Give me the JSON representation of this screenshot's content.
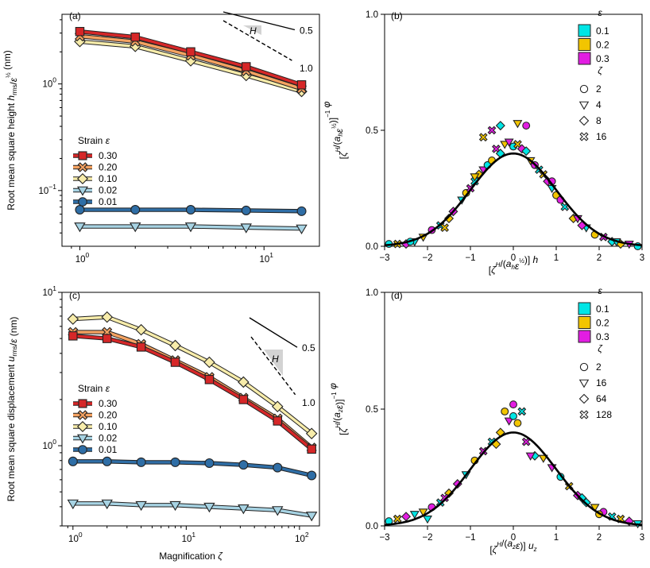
{
  "chart_data": [
    {
      "panel": "(a)",
      "type": "line",
      "yscale": "log",
      "xscale": "log",
      "xlabel": "",
      "ylabel": "Root mean square height h_rms/ε^½ (nm)",
      "xlim": [
        0.8,
        20
      ],
      "ylim": [
        0.03,
        4.5
      ],
      "xticks": [
        1,
        10
      ],
      "xtick_labels": [
        "10^0",
        "10^1"
      ],
      "yticks": [
        0.1,
        1
      ],
      "ytick_labels": [
        "10^-1",
        "10^0"
      ],
      "legend_title": "Strain ε",
      "legend_placement": "center-left",
      "x": [
        1,
        2,
        4,
        8,
        16
      ],
      "series": [
        {
          "name": "0.30",
          "marker": "square",
          "color": "#d62728",
          "values": [
            3.1,
            2.75,
            2.0,
            1.45,
            0.98
          ]
        },
        {
          "name": "0.20",
          "marker": "x",
          "color": "#f4a261",
          "values": [
            2.8,
            2.5,
            1.85,
            1.32,
            0.9
          ]
        },
        {
          "name": "0.10",
          "marker": "diamond",
          "color": "#f7ecaa",
          "values": [
            2.5,
            2.25,
            1.65,
            1.2,
            0.85
          ]
        },
        {
          "name": "0.02",
          "marker": "triangle-down",
          "color": "#a7d3e3",
          "values": [
            0.046,
            0.046,
            0.046,
            0.045,
            0.044
          ]
        },
        {
          "name": "0.01",
          "marker": "circle",
          "color": "#2f6ea6",
          "values": [
            0.066,
            0.066,
            0.066,
            0.065,
            0.064
          ]
        }
      ],
      "slope_annotation": {
        "label": "H",
        "slopes": [
          "0.5",
          "1.0"
        ]
      }
    },
    {
      "panel": "(b)",
      "type": "scatter",
      "xlabel": "[ζ^H/(a_h ε^½)] h",
      "ylabel": "[ζ^H/(a_h ε^½)]^-1 φ",
      "xlim": [
        -3,
        3
      ],
      "ylim": [
        0,
        1.0
      ],
      "xticks": [
        -3,
        -2,
        -1,
        0,
        1,
        2,
        3
      ],
      "yticks": [
        0,
        0.5,
        1.0
      ],
      "ytick_labels": [
        "0.0",
        "0.5",
        "1.0"
      ],
      "legend_placement": "top-right",
      "legend_color_title": "ε",
      "legend_colors": [
        {
          "label": "0.1",
          "color": "#00e5e5"
        },
        {
          "label": "0.2",
          "color": "#f2c500"
        },
        {
          "label": "0.3",
          "color": "#e21de2"
        }
      ],
      "legend_marker_title": "ζ",
      "legend_markers": [
        {
          "label": "2",
          "marker": "circle"
        },
        {
          "label": "4",
          "marker": "triangle-down"
        },
        {
          "label": "8",
          "marker": "diamond"
        },
        {
          "label": "16",
          "marker": "x"
        }
      ],
      "curve": {
        "type": "gaussian",
        "peak": 0.4,
        "sigma": 1.0
      },
      "data_points": [
        [
          -2.9,
          0.01
        ],
        [
          -2.7,
          0.01
        ],
        [
          -2.5,
          0.01
        ],
        [
          -2.3,
          0.02
        ],
        [
          -2.1,
          0.04
        ],
        [
          -1.9,
          0.07
        ],
        [
          -1.7,
          0.09
        ],
        [
          -1.5,
          0.12
        ],
        [
          -1.4,
          0.15
        ],
        [
          -1.2,
          0.2
        ],
        [
          -1.1,
          0.23
        ],
        [
          -1.0,
          0.25
        ],
        [
          -0.9,
          0.28
        ],
        [
          -0.8,
          0.31
        ],
        [
          -0.7,
          0.33
        ],
        [
          -0.6,
          0.35
        ],
        [
          -0.5,
          0.37
        ],
        [
          -0.4,
          0.42
        ],
        [
          -0.3,
          0.4
        ],
        [
          -0.2,
          0.44
        ],
        [
          -0.1,
          0.45
        ],
        [
          0.0,
          0.43
        ],
        [
          0.1,
          0.44
        ],
        [
          0.2,
          0.42
        ],
        [
          0.3,
          0.41
        ],
        [
          0.4,
          0.37
        ],
        [
          0.5,
          0.35
        ],
        [
          0.6,
          0.33
        ],
        [
          0.7,
          0.31
        ],
        [
          0.8,
          0.28
        ],
        [
          0.9,
          0.25
        ],
        [
          1.0,
          0.22
        ],
        [
          1.1,
          0.2
        ],
        [
          1.2,
          0.17
        ],
        [
          1.4,
          0.12
        ],
        [
          1.5,
          0.12
        ],
        [
          1.7,
          0.08
        ],
        [
          1.9,
          0.05
        ],
        [
          2.1,
          0.04
        ],
        [
          2.3,
          0.02
        ],
        [
          2.5,
          0.01
        ],
        [
          2.7,
          0.01
        ],
        [
          2.9,
          0.0
        ],
        [
          -0.7,
          0.47
        ],
        [
          -0.5,
          0.5
        ],
        [
          -0.3,
          0.52
        ],
        [
          0.1,
          0.53
        ],
        [
          0.3,
          0.52
        ],
        [
          -2.4,
          0.02
        ],
        [
          -1.6,
          0.08
        ],
        [
          1.6,
          0.09
        ],
        [
          2.4,
          0.02
        ],
        [
          -0.9,
          0.3
        ],
        [
          0.9,
          0.28
        ]
      ]
    },
    {
      "panel": "(c)",
      "type": "line",
      "yscale": "log",
      "xscale": "log",
      "xlabel": "Magnification ζ",
      "ylabel": "Root mean square displacement u_rms/ε (nm)",
      "xlim": [
        0.8,
        150
      ],
      "ylim": [
        0.3,
        10
      ],
      "xticks": [
        1,
        10,
        100
      ],
      "xtick_labels": [
        "10^0",
        "10^1",
        "10^2"
      ],
      "yticks": [
        1,
        10
      ],
      "ytick_labels": [
        "10^0",
        "10^1"
      ],
      "legend_title": "Strain ε",
      "legend_placement": "center-left",
      "x": [
        1,
        2,
        4,
        8,
        16,
        32,
        64,
        128
      ],
      "series": [
        {
          "name": "0.30",
          "marker": "square",
          "color": "#d62728",
          "values": [
            5.2,
            5.0,
            4.4,
            3.5,
            2.7,
            2.0,
            1.45,
            0.95
          ]
        },
        {
          "name": "0.20",
          "marker": "x",
          "color": "#f4a261",
          "values": [
            5.5,
            5.5,
            4.6,
            3.6,
            2.8,
            2.05,
            1.5,
            0.97
          ]
        },
        {
          "name": "0.10",
          "marker": "diamond",
          "color": "#f7ecaa",
          "values": [
            6.7,
            6.9,
            5.7,
            4.5,
            3.5,
            2.6,
            1.8,
            1.2
          ]
        },
        {
          "name": "0.02",
          "marker": "triangle-down",
          "color": "#a7d3e3",
          "values": [
            0.42,
            0.42,
            0.41,
            0.41,
            0.4,
            0.39,
            0.38,
            0.35
          ]
        },
        {
          "name": "0.01",
          "marker": "circle",
          "color": "#2f6ea6",
          "values": [
            0.79,
            0.79,
            0.78,
            0.78,
            0.77,
            0.75,
            0.72,
            0.64
          ]
        }
      ],
      "slope_annotation": {
        "label": "H",
        "slopes": [
          "0.5",
          "1.0"
        ]
      }
    },
    {
      "panel": "(d)",
      "type": "scatter",
      "xlabel": "[ζ^H/(a_z ε)] u_z",
      "ylabel": "[ζ^H/(a_z ε)]^-1 φ",
      "xlim": [
        -3,
        3
      ],
      "ylim": [
        0,
        1.0
      ],
      "xticks": [
        -3,
        -2,
        -1,
        0,
        1,
        2,
        3
      ],
      "yticks": [
        0,
        0.5,
        1.0
      ],
      "ytick_labels": [
        "0.0",
        "0.5",
        "1.0"
      ],
      "legend_placement": "top-right",
      "legend_color_title": "ε",
      "legend_colors": [
        {
          "label": "0.1",
          "color": "#00e5e5"
        },
        {
          "label": "0.2",
          "color": "#f2c500"
        },
        {
          "label": "0.3",
          "color": "#e21de2"
        }
      ],
      "legend_marker_title": "ζ",
      "legend_markers": [
        {
          "label": "2",
          "marker": "circle"
        },
        {
          "label": "16",
          "marker": "triangle-down"
        },
        {
          "label": "64",
          "marker": "diamond"
        },
        {
          "label": "128",
          "marker": "x"
        }
      ],
      "curve": {
        "type": "gaussian",
        "peak": 0.4,
        "sigma": 1.0
      },
      "data_points": [
        [
          -2.9,
          0.02
        ],
        [
          -2.7,
          0.03
        ],
        [
          -2.5,
          0.04
        ],
        [
          -2.3,
          0.05
        ],
        [
          -2.1,
          0.06
        ],
        [
          -1.9,
          0.08
        ],
        [
          -1.7,
          0.1
        ],
        [
          -1.5,
          0.14
        ],
        [
          -1.3,
          0.18
        ],
        [
          -1.1,
          0.22
        ],
        [
          -0.9,
          0.28
        ],
        [
          -0.7,
          0.32
        ],
        [
          -0.5,
          0.36
        ],
        [
          -0.3,
          0.4
        ],
        [
          -0.1,
          0.45
        ],
        [
          0.0,
          0.47
        ],
        [
          0.1,
          0.44
        ],
        [
          0.3,
          0.36
        ],
        [
          0.5,
          0.3
        ],
        [
          0.7,
          0.29
        ],
        [
          0.9,
          0.25
        ],
        [
          1.1,
          0.21
        ],
        [
          1.3,
          0.17
        ],
        [
          1.5,
          0.13
        ],
        [
          1.7,
          0.1
        ],
        [
          1.9,
          0.08
        ],
        [
          2.1,
          0.06
        ],
        [
          2.3,
          0.04
        ],
        [
          2.5,
          0.03
        ],
        [
          2.7,
          0.02
        ],
        [
          2.9,
          0.01
        ],
        [
          -0.2,
          0.49
        ],
        [
          0.0,
          0.52
        ],
        [
          0.2,
          0.49
        ],
        [
          -0.4,
          0.35
        ],
        [
          0.4,
          0.3
        ],
        [
          -2.0,
          0.03
        ],
        [
          2.0,
          0.05
        ],
        [
          -1.6,
          0.12
        ],
        [
          1.6,
          0.12
        ]
      ]
    }
  ]
}
